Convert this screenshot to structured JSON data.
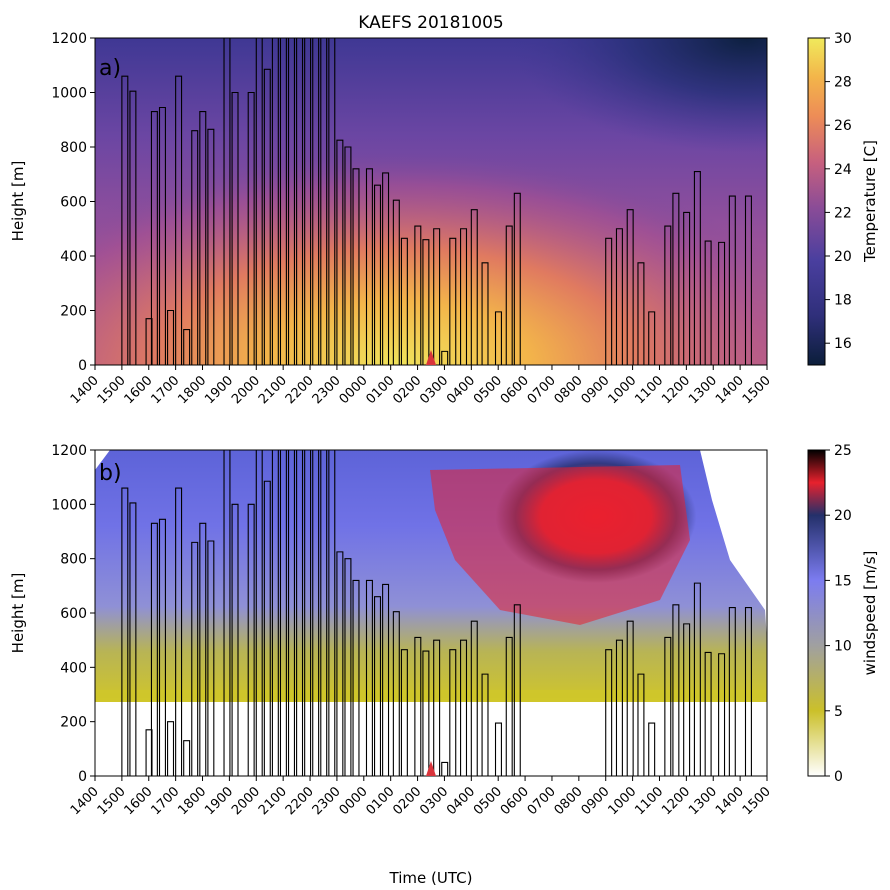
{
  "title": "KAEFS 20181005",
  "xlabel": "Time (UTC)",
  "chart_data": [
    {
      "type": "heatmap",
      "panel_label": "a)",
      "ylabel": "Height [m]",
      "ylim": [
        0,
        1200
      ],
      "yticks": [
        0,
        200,
        400,
        600,
        800,
        1000,
        1200
      ],
      "xticklabels": [
        "1400",
        "1500",
        "1600",
        "1700",
        "1800",
        "1900",
        "2000",
        "2100",
        "2200",
        "2300",
        "0000",
        "0100",
        "0200",
        "0300",
        "0400",
        "0500",
        "0600",
        "0700",
        "0800",
        "0900",
        "1000",
        "1100",
        "1200",
        "1300",
        "1400",
        "1500"
      ],
      "colorbar": {
        "label": "Temperature [C]",
        "range": [
          15,
          30
        ],
        "ticks": [
          16,
          18,
          20,
          22,
          24,
          26,
          28,
          30
        ],
        "colors": [
          "#0b1e3a",
          "#2f2f7a",
          "#4a3f9f",
          "#8a4c97",
          "#c7607e",
          "#ed8c57",
          "#f3b54a",
          "#f0ea5c"
        ]
      },
      "marker_time": "0230",
      "marker_color": "#d9343b"
    },
    {
      "type": "heatmap",
      "panel_label": "b)",
      "ylabel": "Height [m]",
      "ylim": [
        0,
        1200
      ],
      "yticks": [
        0,
        200,
        400,
        600,
        800,
        1000,
        1200
      ],
      "xticklabels": [
        "1400",
        "1500",
        "1600",
        "1700",
        "1800",
        "1900",
        "2000",
        "2100",
        "2200",
        "2300",
        "0000",
        "0100",
        "0200",
        "0300",
        "0400",
        "0500",
        "0600",
        "0700",
        "0800",
        "0900",
        "1000",
        "1100",
        "1200",
        "1300",
        "1400",
        "1500"
      ],
      "colorbar": {
        "label": "windspeed [m/s]",
        "range": [
          0,
          25
        ],
        "ticks": [
          0,
          5,
          10,
          15,
          20,
          25
        ],
        "colors": [
          "#ffffff",
          "#cbc02a",
          "#a0a0a0",
          "#7c7cf0",
          "#24306a",
          "#e8212d",
          "#000000"
        ]
      },
      "marker_time": "0230",
      "marker_color": "#d9343b"
    }
  ],
  "profiles": {
    "description_free": true,
    "hours_after_1400": [
      1.0,
      1.3,
      1.9,
      2.1,
      2.4,
      2.7,
      3.0,
      3.3,
      3.6,
      3.9,
      4.2,
      4.8,
      5.1,
      5.7,
      6.0,
      6.3,
      6.6,
      6.9,
      7.2,
      7.5,
      7.8,
      8.1,
      8.4,
      8.7,
      9.0,
      9.3,
      9.6,
      10.1,
      10.4,
      10.7,
      11.1,
      11.4,
      11.9,
      12.2,
      12.6,
      12.9,
      13.2,
      13.6,
      14.0,
      14.4,
      14.9,
      15.3,
      15.6,
      19.0,
      19.4,
      19.8,
      20.2,
      20.6,
      21.2,
      21.5,
      21.9,
      22.3,
      22.7,
      23.2,
      23.6,
      24.2
    ],
    "top_heights_m": [
      1060,
      1005,
      170,
      930,
      945,
      200,
      1060,
      130,
      860,
      930,
      865,
      1200,
      1000,
      1000,
      1200,
      1085,
      1200,
      1200,
      1200,
      1200,
      1200,
      1200,
      1200,
      1200,
      825,
      800,
      720,
      720,
      660,
      705,
      605,
      465,
      510,
      460,
      500,
      50,
      465,
      500,
      570,
      375,
      195,
      510,
      630,
      465,
      500,
      570,
      375,
      195,
      510,
      630,
      560,
      710,
      455,
      450,
      620,
      620
    ]
  }
}
